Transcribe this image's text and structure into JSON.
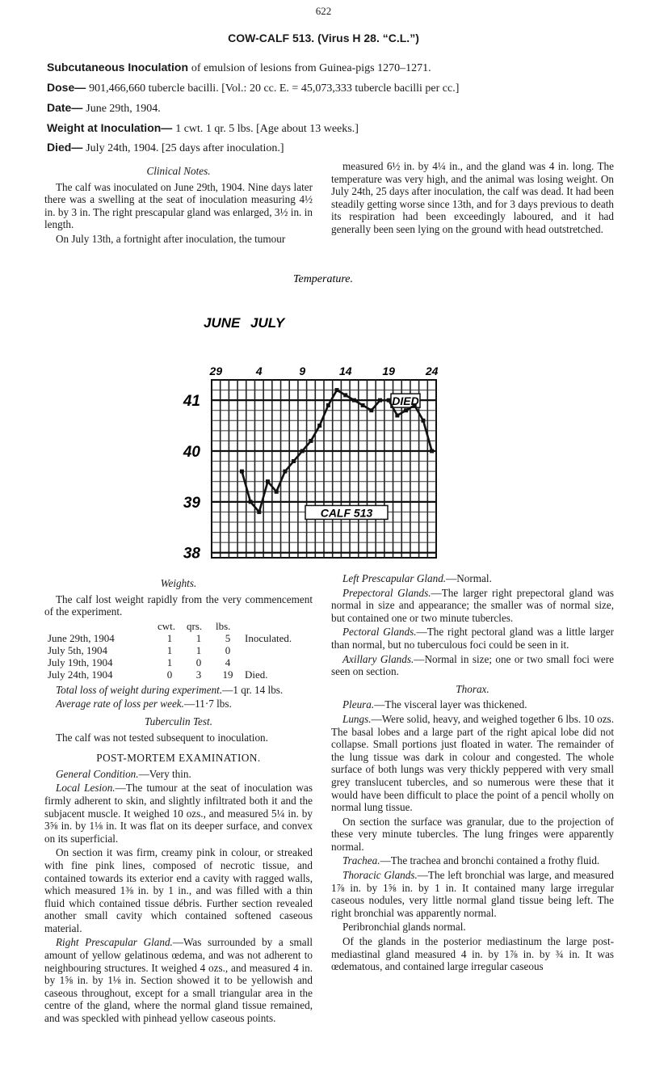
{
  "page_number": "622",
  "header": {
    "title": "COW-CALF 513. (Virus H 28. “C.L.”)",
    "lines": [
      {
        "label": "Subcutaneous Inoculation",
        "text": "of emulsion of lesions from Guinea-pigs 1270–1271."
      },
      {
        "label": "Dose—",
        "text": "901,466,660 tubercle bacilli. [Vol.: 20 cc. E. = 45,073,333 tubercle bacilli per cc.]"
      },
      {
        "label": "Date—",
        "text": "June 29th, 1904."
      },
      {
        "label": "Weight at Inoculation—",
        "text": "1 cwt. 1 qr. 5 lbs. [Age about 13 weeks.]"
      },
      {
        "label": "Died—",
        "text": "July 24th, 1904. [25 days after inoculation.]"
      }
    ]
  },
  "upper_left": [
    {
      "heading": "Clinical Notes."
    },
    {
      "text": "The calf was inoculated on June 29th, 1904. Nine days later there was a swelling at the seat of inoculation measuring 4½ in. by 3 in. The right prescapular gland was enlarged, 3½ in. in length."
    },
    {
      "text": "On July 13th, a fortnight after inoculation, the tumour"
    }
  ],
  "upper_right": [
    {
      "text": "measured 6½ in. by 4¼ in., and the gland was 4 in. long. The temperature was very high, and the animal was losing weight. On July 24th, 25 days after inoculation, the calf was dead. It had been steadily getting worse since 13th, and for 3 days previous to death its respiration had been exceedingly laboured, and it had generally been seen lying on the ground with head outstretched."
    }
  ],
  "chart_data": {
    "type": "line",
    "title": "Temperature.",
    "months": [
      "JUNE",
      "JULY"
    ],
    "categories": [
      "29",
      null,
      null,
      null,
      null,
      "4",
      null,
      null,
      null,
      null,
      "9",
      null,
      null,
      null,
      null,
      "14",
      null,
      null,
      null,
      null,
      "19",
      null,
      null,
      null,
      null,
      "24"
    ],
    "values": [
      null,
      null,
      null,
      39.6,
      39.0,
      38.8,
      39.4,
      39.2,
      39.6,
      39.8,
      40.0,
      40.2,
      40.5,
      40.9,
      41.2,
      41.1,
      41.0,
      40.9,
      40.8,
      41.0,
      41.0,
      40.7,
      40.8,
      40.9,
      40.6,
      40.0
    ],
    "color": "#111111",
    "ylim": [
      37.9,
      41.4
    ],
    "yticks": [
      38,
      39,
      40,
      41
    ],
    "grid": true,
    "annotations": [
      "DIED",
      "CALF 513"
    ]
  },
  "lower_left": [
    {
      "heading": "Weights."
    },
    {
      "text": "The calf lost weight rapidly from the very commencement of the experiment."
    },
    {
      "table": {
        "columns": [
          "cwt.",
          "qrs.",
          "lbs."
        ],
        "rows": [
          {
            "date": "June 29th, 1904",
            "cells": [
              "1",
              "1",
              "5"
            ],
            "note": "Inoculated."
          },
          {
            "date": "July 5th, 1904",
            "cells": [
              "1",
              "1",
              "0"
            ]
          },
          {
            "date": "July 19th, 1904",
            "cells": [
              "1",
              "0",
              "4"
            ]
          },
          {
            "date": "July 24th, 1904",
            "cells": [
              "0",
              "3",
              "19"
            ],
            "note": "Died."
          }
        ]
      }
    },
    {
      "lead": "Total loss of weight during experiment.",
      "text": "—1 qr. 14 lbs."
    },
    {
      "lead": "Average rate of loss per week.",
      "text": "—11·7 lbs."
    },
    {
      "heading": "Tuberculin Test."
    },
    {
      "text": "The calf was not tested subsequent to inoculation."
    },
    {
      "caps": "POST-MORTEM EXAMINATION."
    },
    {
      "lead": "General Condition.",
      "text": "—Very thin."
    },
    {
      "lead": "Local Lesion.",
      "text": "—The tumour at the seat of inoculation was firmly adherent to skin, and slightly infiltrated both it and the subjacent muscle. It weighed 10 ozs., and measured 5¼ in. by 3⅝ in. by 1⅛ in. It was flat on its deeper surface, and convex on its superficial."
    },
    {
      "text": "On section it was firm, creamy pink in colour, or streaked with fine pink lines, composed of necrotic tissue, and contained towards its exterior end a cavity with ragged walls, which measured 1⅜ in. by 1 in., and was filled with a thin fluid which contained tissue débris. Further section revealed another small cavity which contained softened caseous material."
    },
    {
      "lead": "Right Prescapular Gland.",
      "text": "—Was surrounded by a small amount of yellow gelatinous œdema, and was not adherent to neighbouring structures. It weighed 4 ozs., and measured 4 in. by 1⅝ in. by 1⅛ in. Section showed it to be yellowish and caseous throughout, except for a small triangular area in the centre of the gland, where the normal gland tissue remained, and was speckled with pinhead yellow caseous points."
    }
  ],
  "lower_right": [
    {
      "lead": "Left Prescapular Gland.",
      "text": "—Normal."
    },
    {
      "lead": "Prepectoral Glands.",
      "text": "—The larger right prepectoral gland was normal in size and appearance; the smaller was of normal size, but contained one or two minute tubercles."
    },
    {
      "lead": "Pectoral Glands.",
      "text": "—The right pectoral gland was a little larger than normal, but no tuberculous foci could be seen in it."
    },
    {
      "lead": "Axillary Glands.",
      "text": "—Normal in size; one or two small foci were seen on section."
    },
    {
      "heading": "Thorax."
    },
    {
      "lead": "Pleura.",
      "text": "—The visceral layer was thickened."
    },
    {
      "lead": "Lungs.",
      "text": "—Were solid, heavy, and weighed together 6 lbs. 10 ozs. The basal lobes and a large part of the right apical lobe did not collapse. Small portions just floated in water. The remainder of the lung tissue was dark in colour and congested. The whole surface of both lungs was very thickly peppered with very small grey translucent tubercles, and so numerous were these that it would have been difficult to place the point of a pencil wholly on normal lung tissue."
    },
    {
      "text": "On section the surface was granular, due to the projection of these very minute tubercles. The lung fringes were apparently normal."
    },
    {
      "lead": "Trachea.",
      "text": "—The trachea and bronchi contained a frothy fluid."
    },
    {
      "lead": "Thoracic Glands.",
      "text": "—The left bronchial was large, and measured 1⅞ in. by 1⅝ in. by 1 in. It contained many large irregular caseous nodules, very little normal gland tissue being left. The right bronchial was apparently normal."
    },
    {
      "text": "Peribronchial glands normal."
    },
    {
      "text": "Of the glands in the posterior mediastinum the large post-mediastinal gland measured 4 in. by 1⅞ in. by ¾ in. It was œdematous, and contained large irregular caseous"
    }
  ]
}
